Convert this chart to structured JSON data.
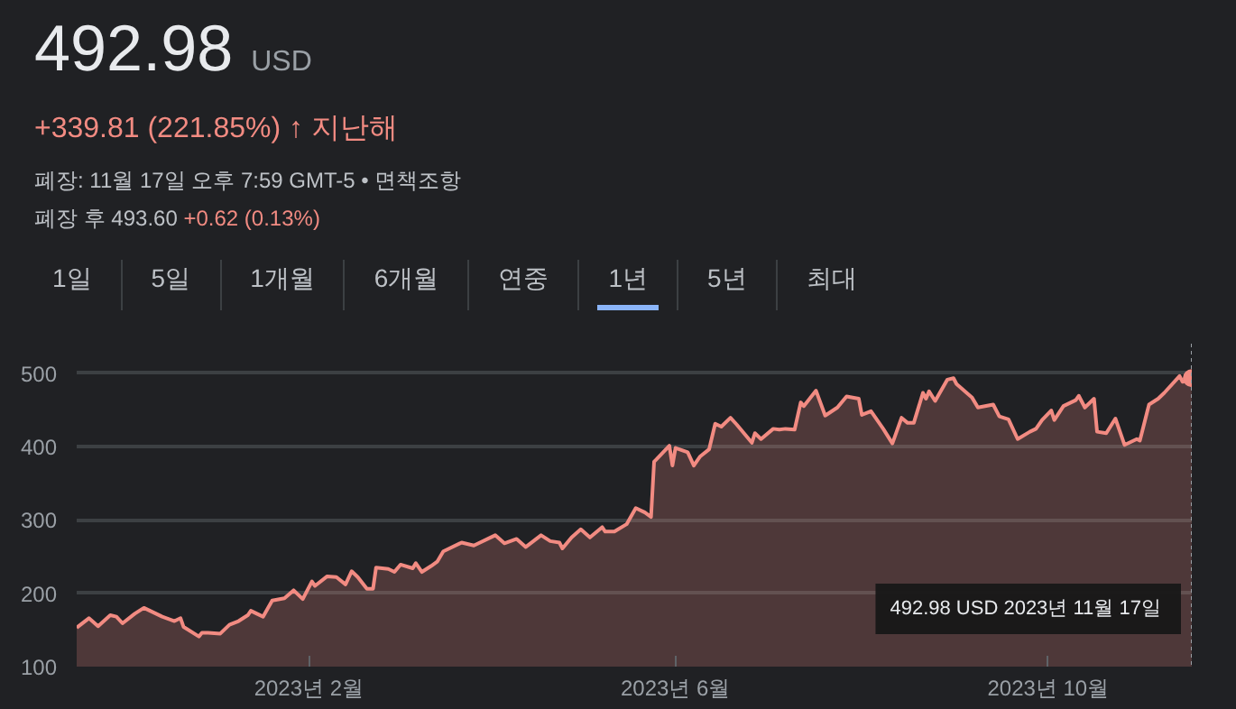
{
  "chart_data": {
    "type": "area",
    "title": "492.98",
    "subtitle": "USD",
    "annotations": [
      "+339.81 (221.85%) ↑ 지난해",
      "폐장: 11월 17일 오후 7:59 GMT-5 • 면책조항",
      "폐장 후 493.60",
      "+0.62 (0.13%)",
      "1일",
      "5일",
      "1개월",
      "6개월",
      "연중",
      "1년",
      "5년",
      "최대",
      "492.98 USD  2023년 11월 17일"
    ],
    "x": [
      "2022-11-17",
      "2022-11-21",
      "2022-11-24",
      "2022-11-28",
      "2022-11-30",
      "2022-12-02",
      "2022-12-06",
      "2022-12-09",
      "2022-12-15",
      "2022-12-19",
      "2022-12-21",
      "2022-12-22",
      "2022-12-27",
      "2022-12-28",
      "2022-12-30",
      "2023-01-03",
      "2023-01-06",
      "2023-01-09",
      "2023-01-12",
      "2023-01-13",
      "2023-01-17",
      "2023-01-20",
      "2023-01-24",
      "2023-01-27",
      "2023-01-30",
      "2023-02-02",
      "2023-02-03",
      "2023-02-07",
      "2023-02-10",
      "2023-02-13",
      "2023-02-15",
      "2023-02-17",
      "2023-02-20",
      "2023-02-22",
      "2023-02-23",
      "2023-02-27",
      "2023-03-01",
      "2023-03-03",
      "2023-03-07",
      "2023-03-08",
      "2023-03-10",
      "2023-03-13",
      "2023-03-15",
      "2023-03-17",
      "2023-03-23",
      "2023-03-27",
      "2023-04-03",
      "2023-04-06",
      "2023-04-10",
      "2023-04-13",
      "2023-04-18",
      "2023-04-21",
      "2023-04-24",
      "2023-04-25",
      "2023-04-28",
      "2023-05-01",
      "2023-05-04",
      "2023-05-08",
      "2023-05-09",
      "2023-05-12",
      "2023-05-16",
      "2023-05-19",
      "2023-05-22",
      "2023-05-24",
      "2023-05-25",
      "2023-05-30",
      "2023-05-31",
      "2023-06-01",
      "2023-06-05",
      "2023-06-07",
      "2023-06-09",
      "2023-06-12",
      "2023-06-14",
      "2023-06-16",
      "2023-06-19",
      "2023-06-21",
      "2023-06-26",
      "2023-06-27",
      "2023-06-29",
      "2023-07-03",
      "2023-07-05",
      "2023-07-07",
      "2023-07-10",
      "2023-07-12",
      "2023-07-13",
      "2023-07-17",
      "2023-07-20",
      "2023-07-24",
      "2023-07-27",
      "2023-07-31",
      "2023-08-01",
      "2023-08-04",
      "2023-08-08",
      "2023-08-11",
      "2023-08-14",
      "2023-08-16",
      "2023-08-18",
      "2023-08-21",
      "2023-08-22",
      "2023-08-23",
      "2023-08-25",
      "2023-08-29",
      "2023-08-31",
      "2023-09-01",
      "2023-09-06",
      "2023-09-08",
      "2023-09-13",
      "2023-09-15",
      "2023-09-18",
      "2023-09-21",
      "2023-09-25",
      "2023-09-27",
      "2023-09-29",
      "2023-10-02",
      "2023-10-03",
      "2023-10-06",
      "2023-10-10",
      "2023-10-11",
      "2023-10-13",
      "2023-10-16",
      "2023-10-17",
      "2023-10-20",
      "2023-10-23",
      "2023-10-26",
      "2023-10-30",
      "2023-10-31",
      "2023-11-03",
      "2023-11-06",
      "2023-11-08",
      "2023-11-13",
      "2023-11-14",
      "2023-11-17"
    ],
    "series": [
      {
        "color": "#f28b82",
        "values": [
          153,
          166,
          155,
          170,
          168,
          159,
          172,
          180,
          168,
          162,
          166,
          154,
          141,
          146,
          146,
          145,
          157,
          162,
          170,
          176,
          168,
          190,
          193,
          204,
          192,
          216,
          210,
          223,
          222,
          212,
          230,
          222,
          206,
          206,
          235,
          233,
          229,
          239,
          234,
          241,
          229,
          237,
          243,
          257,
          269,
          265,
          279,
          268,
          274,
          263,
          279,
          271,
          269,
          261,
          276,
          287,
          276,
          290,
          284,
          284,
          294,
          316,
          310,
          304,
          379,
          401,
          374,
          398,
          392,
          374,
          386,
          396,
          431,
          427,
          439,
          430,
          405,
          418,
          410,
          424,
          423,
          424,
          423,
          460,
          455,
          476,
          442,
          453,
          468,
          465,
          443,
          448,
          424,
          404,
          439,
          432,
          432,
          473,
          465,
          475,
          462,
          491,
          493,
          485,
          467,
          453,
          457,
          441,
          437,
          410,
          420,
          424,
          436,
          449,
          436,
          455,
          463,
          469,
          453,
          465,
          420,
          418,
          438,
          402,
          410,
          408,
          457,
          465,
          473,
          496,
          488,
          492.98
        ]
      }
    ],
    "xlim": [
      "2022-11-17",
      "2023-11-17"
    ],
    "xticks": [
      {
        "value": "2023-02-01",
        "label": "2023년 2월"
      },
      {
        "value": "2023-06-01",
        "label": "2023년 6월"
      },
      {
        "value": "2023-10-01",
        "label": "2023년 10월"
      }
    ],
    "ylim": [
      100,
      540
    ],
    "yticks": [
      100,
      200,
      300,
      400,
      500
    ],
    "grid": "y"
  }
}
